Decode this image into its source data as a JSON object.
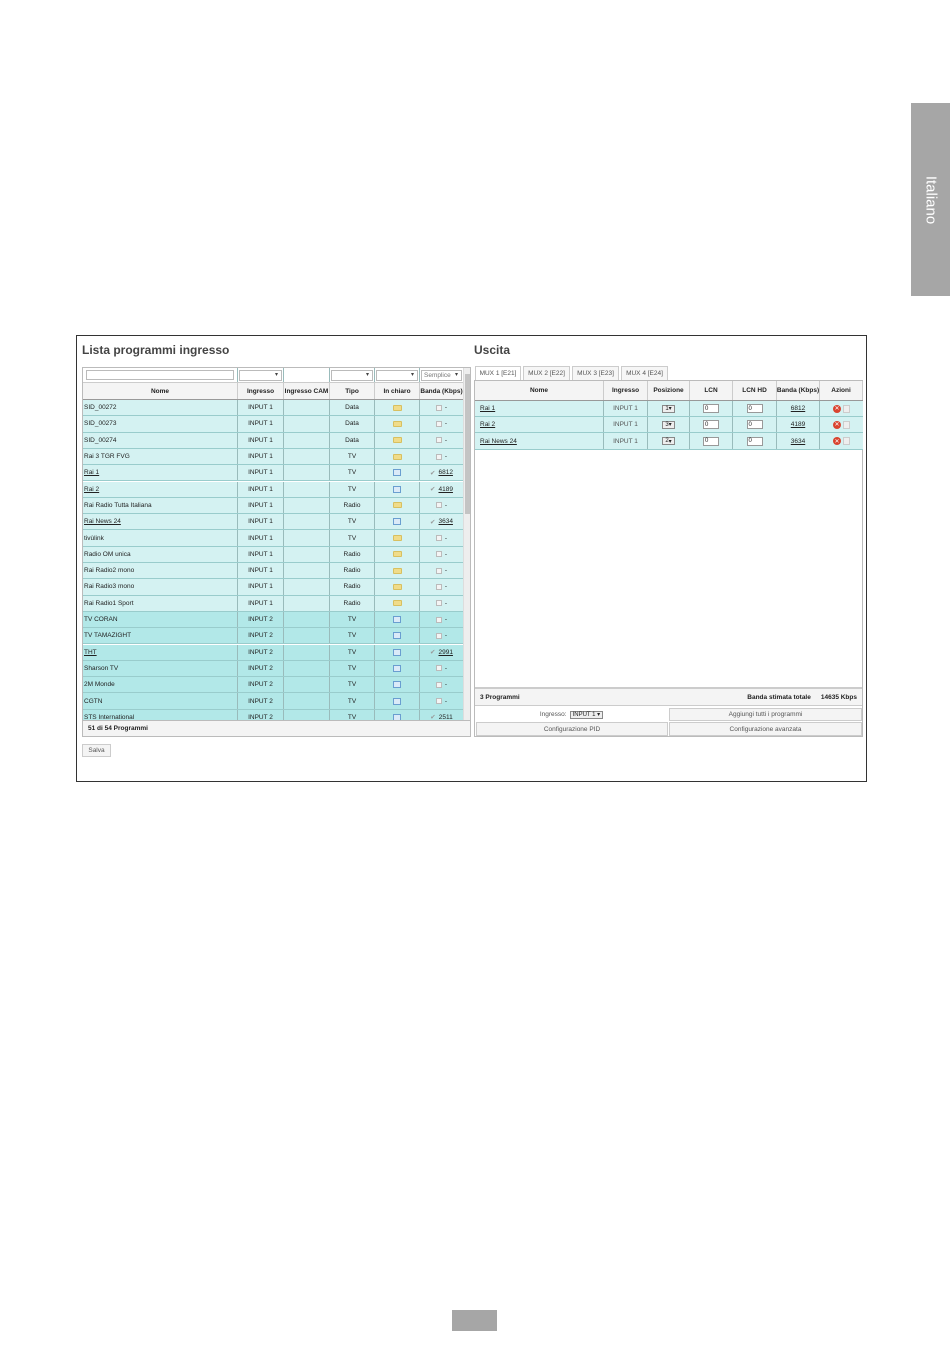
{
  "side_tab": "Italiano",
  "left": {
    "title": "Lista programmi ingresso",
    "filter_mode": "Semplice",
    "headers": [
      "Nome",
      "Ingresso",
      "Ingresso CAM",
      "Tipo",
      "In chiaro",
      "Banda (Kbps)"
    ],
    "rows": [
      {
        "name": "SID_00272",
        "input": "INPUT 1",
        "cam": "",
        "type": "Data",
        "clear": "lock",
        "selected": false,
        "band": "-",
        "link": false
      },
      {
        "name": "SID_00273",
        "input": "INPUT 1",
        "cam": "",
        "type": "Data",
        "clear": "lock",
        "selected": false,
        "band": "-",
        "link": false
      },
      {
        "name": "SID_00274",
        "input": "INPUT 1",
        "cam": "",
        "type": "Data",
        "clear": "lock",
        "selected": false,
        "band": "-",
        "link": false
      },
      {
        "name": "Rai 3 TGR FVG",
        "input": "INPUT 1",
        "cam": "",
        "type": "TV",
        "clear": "lock",
        "selected": false,
        "band": "-",
        "link": false
      },
      {
        "name": "Rai 1",
        "input": "INPUT 1",
        "cam": "",
        "type": "TV",
        "clear": "tv",
        "selected": true,
        "band": "6812",
        "link": true
      },
      {
        "name": "Rai 2",
        "input": "INPUT 1",
        "cam": "",
        "type": "TV",
        "clear": "tv",
        "selected": true,
        "band": "4189",
        "link": true
      },
      {
        "name": "Rai Radio Tutta Italiana",
        "input": "INPUT 1",
        "cam": "",
        "type": "Radio",
        "clear": "lock",
        "selected": false,
        "band": "-",
        "link": false
      },
      {
        "name": "Rai News 24",
        "input": "INPUT 1",
        "cam": "",
        "type": "TV",
        "clear": "tv",
        "selected": true,
        "band": "3634",
        "link": true
      },
      {
        "name": "tivùlink",
        "input": "INPUT 1",
        "cam": "",
        "type": "TV",
        "clear": "lock",
        "selected": false,
        "band": "-",
        "link": false
      },
      {
        "name": "Radio OM unica",
        "input": "INPUT 1",
        "cam": "",
        "type": "Radio",
        "clear": "lock",
        "selected": false,
        "band": "-",
        "link": false
      },
      {
        "name": "Rai Radio2 mono",
        "input": "INPUT 1",
        "cam": "",
        "type": "Radio",
        "clear": "lock",
        "selected": false,
        "band": "-",
        "link": false
      },
      {
        "name": "Rai Radio3 mono",
        "input": "INPUT 1",
        "cam": "",
        "type": "Radio",
        "clear": "lock",
        "selected": false,
        "band": "-",
        "link": false
      },
      {
        "name": "Rai Radio1 Sport",
        "input": "INPUT 1",
        "cam": "",
        "type": "Radio",
        "clear": "lock",
        "selected": false,
        "band": "-",
        "link": false
      },
      {
        "name": "TV CORAN",
        "input": "INPUT 2",
        "cam": "",
        "type": "TV",
        "clear": "tv",
        "selected": false,
        "band": "-",
        "link": false
      },
      {
        "name": "TV TAMAZIGHT",
        "input": "INPUT 2",
        "cam": "",
        "type": "TV",
        "clear": "tv",
        "selected": false,
        "band": "-",
        "link": false
      },
      {
        "name": "THT",
        "input": "INPUT 2",
        "cam": "",
        "type": "TV",
        "clear": "tv",
        "selected": true,
        "band": "2991",
        "link": true
      },
      {
        "name": "Sharson TV",
        "input": "INPUT 2",
        "cam": "",
        "type": "TV",
        "clear": "tv",
        "selected": false,
        "band": "-",
        "link": false
      },
      {
        "name": "2M Monde",
        "input": "INPUT 2",
        "cam": "",
        "type": "TV",
        "clear": "tv",
        "selected": false,
        "band": "-",
        "link": false
      },
      {
        "name": "CGTN",
        "input": "INPUT 2",
        "cam": "",
        "type": "TV",
        "clear": "tv",
        "selected": false,
        "band": "-",
        "link": false
      },
      {
        "name": "STS International",
        "input": "INPUT 2",
        "cam": "",
        "type": "TV",
        "clear": "tv",
        "selected": true,
        "band": "2511",
        "link": false
      }
    ],
    "footer": "51 di 54 Programmi",
    "save_label": "Salva"
  },
  "right": {
    "title": "Uscita",
    "tabs": [
      "MUX 1 [E21]",
      "MUX 2 [E22]",
      "MUX 3 [E23]",
      "MUX 4 [E24]"
    ],
    "active_tab": 0,
    "headers": [
      "Nome",
      "Ingresso",
      "Posizione",
      "LCN",
      "LCN HD",
      "Banda (Kbps)",
      "Azioni"
    ],
    "rows": [
      {
        "name": "Rai 1",
        "input": "INPUT 1",
        "position": "1",
        "lcn": "0",
        "lcn_hd": "0",
        "band": "6812"
      },
      {
        "name": "Rai 2",
        "input": "INPUT 1",
        "position": "3",
        "lcn": "0",
        "lcn_hd": "0",
        "band": "4189"
      },
      {
        "name": "Rai News 24",
        "input": "INPUT 1",
        "position": "2",
        "lcn": "0",
        "lcn_hd": "0",
        "band": "3634"
      }
    ],
    "count": "3 Programmi",
    "total_label": "Banda stimata totale",
    "total_value": "14635 Kbps",
    "input_label": "Ingresso:",
    "input_value": "INPUT 1",
    "add_all": "Aggiungi tutti i programmi",
    "pid_config": "Configurazione PID",
    "advanced_config": "Configurazione avanzata"
  },
  "colors": {
    "row_input1": "#d4f2f2",
    "row_input2": "#b2e8e8"
  }
}
